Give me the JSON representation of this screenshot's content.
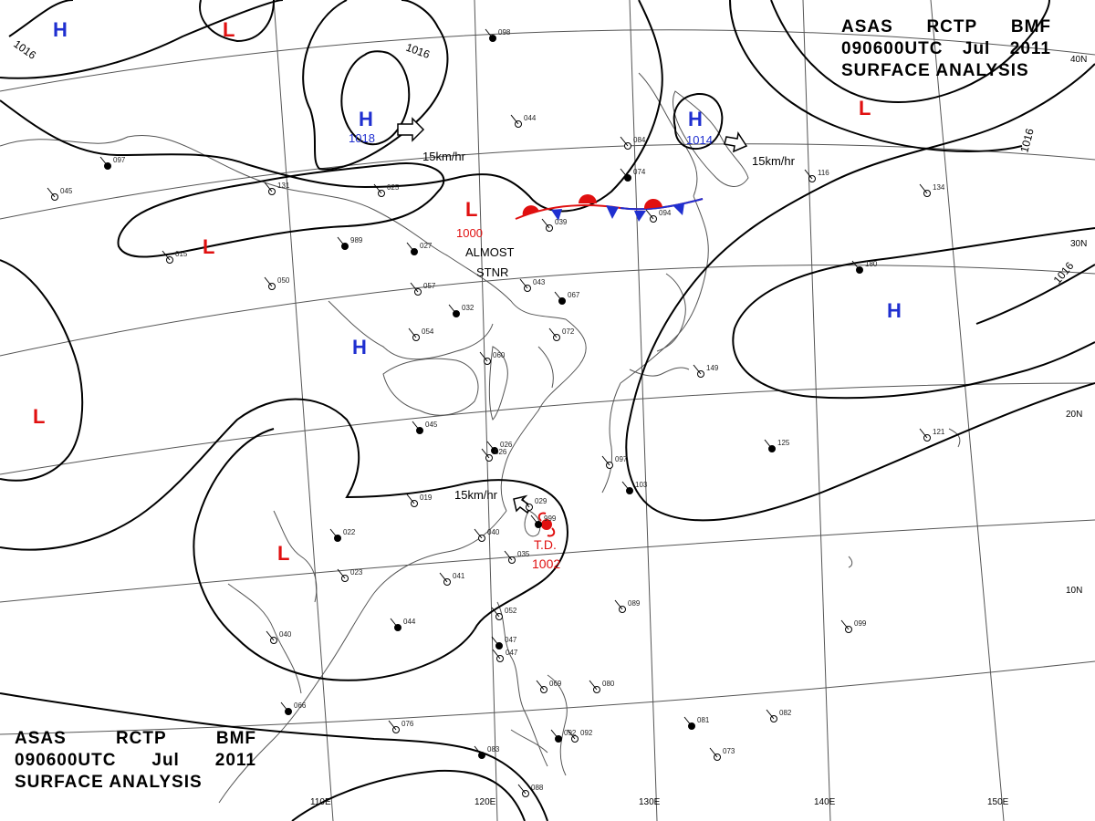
{
  "header": {
    "line1": [
      "ASAS",
      "RCTP",
      "BMF"
    ],
    "line2": [
      "090600UTC",
      "Jul",
      "2011"
    ],
    "line3": "SURFACE ANALYSIS"
  },
  "colors": {
    "high": "#1f2fd0",
    "low": "#e01010",
    "isobar": "#000000",
    "coast": "#555555",
    "grid": "#555555",
    "front_warm": "#e01010",
    "front_cold": "#1f2fd0",
    "storm": "#e01010"
  },
  "lat_labels": [
    "40N",
    "30N",
    "20N",
    "10N"
  ],
  "lon_labels": [
    "110E",
    "120E",
    "130E",
    "140E",
    "150E"
  ],
  "pressure_labels": [
    "1016",
    "1016",
    "1016",
    "1016"
  ],
  "pressure_centers": [
    {
      "type": "H",
      "value": ""
    },
    {
      "type": "L",
      "value": ""
    },
    {
      "type": "H",
      "value": "1018"
    },
    {
      "type": "L",
      "value": "1000"
    },
    {
      "type": "H",
      "value": "1014"
    },
    {
      "type": "L",
      "value": ""
    },
    {
      "type": "L",
      "value": ""
    },
    {
      "type": "H",
      "value": ""
    },
    {
      "type": "H",
      "value": ""
    },
    {
      "type": "L",
      "value": ""
    },
    {
      "type": "L",
      "value": ""
    }
  ],
  "motion_labels": [
    "15km/hr",
    "15km/hr",
    "15km/hr"
  ],
  "stationary_label": [
    "ALMOST",
    "STNR"
  ],
  "storm": {
    "name": "T.D.",
    "pressure": "1002"
  },
  "station_obs": [
    "098",
    "044",
    "084",
    "074",
    "039",
    "094",
    "989",
    "015",
    "050",
    "027",
    "025",
    "131",
    "097",
    "045",
    "057",
    "032",
    "054",
    "043",
    "067",
    "072",
    "060",
    "045",
    "026",
    "019",
    "999",
    "040",
    "035",
    "022",
    "023",
    "041",
    "044",
    "040",
    "052",
    "047",
    "069",
    "080",
    "081",
    "082",
    "076",
    "083",
    "092",
    "088",
    "066",
    "089",
    "099",
    "125",
    "121",
    "097",
    "103",
    "149",
    "134",
    "180",
    "116",
    "073",
    "026",
    "029",
    "047",
    "092"
  ]
}
